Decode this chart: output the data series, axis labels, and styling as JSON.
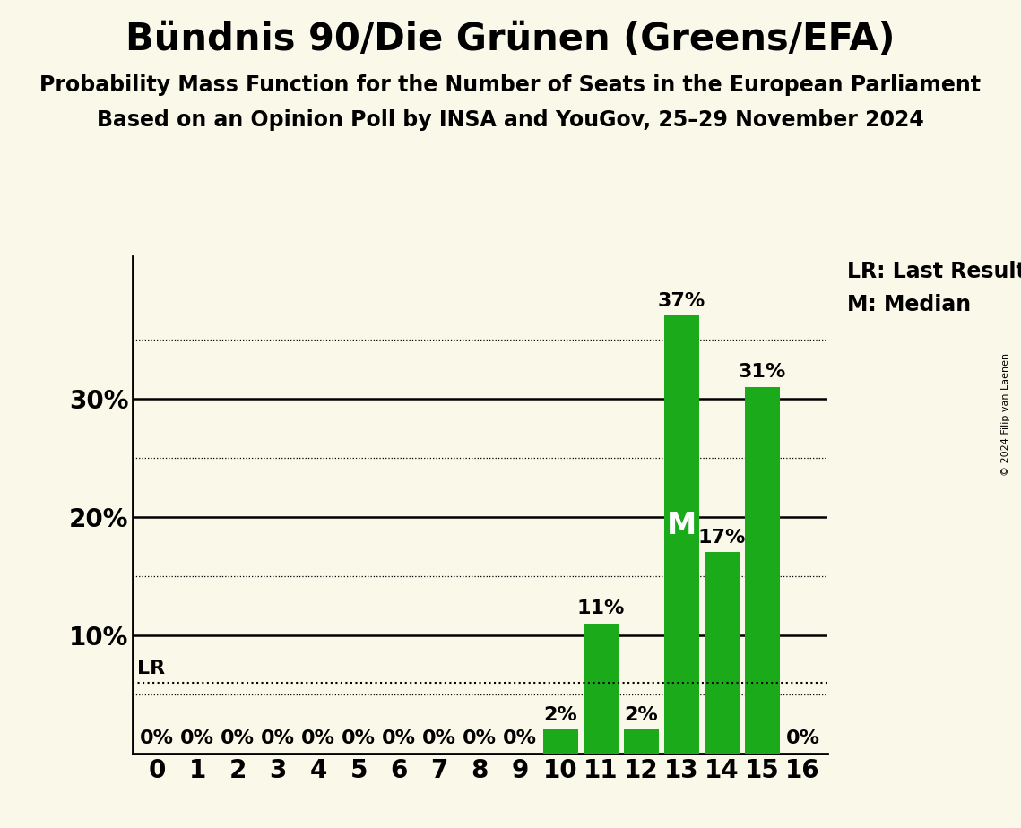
{
  "title": "Bündnis 90/Die Grünen (Greens/EFA)",
  "subtitle1": "Probability Mass Function for the Number of Seats in the European Parliament",
  "subtitle2": "Based on an Opinion Poll by INSA and YouGov, 25–29 November 2024",
  "copyright": "© 2024 Filip van Laenen",
  "categories": [
    0,
    1,
    2,
    3,
    4,
    5,
    6,
    7,
    8,
    9,
    10,
    11,
    12,
    13,
    14,
    15,
    16
  ],
  "values": [
    0,
    0,
    0,
    0,
    0,
    0,
    0,
    0,
    0,
    0,
    2,
    11,
    2,
    37,
    17,
    31,
    0
  ],
  "bar_color": "#1aaa1a",
  "background_color": "#faf8e8",
  "lr_value": 6,
  "median_seat": 13,
  "ylim": [
    0,
    42
  ],
  "legend_lr": "LR: Last Result",
  "legend_m": "M: Median",
  "title_fontsize": 30,
  "subtitle_fontsize": 17,
  "tick_fontsize": 20,
  "annotation_fontsize": 16,
  "legend_fontsize": 17
}
